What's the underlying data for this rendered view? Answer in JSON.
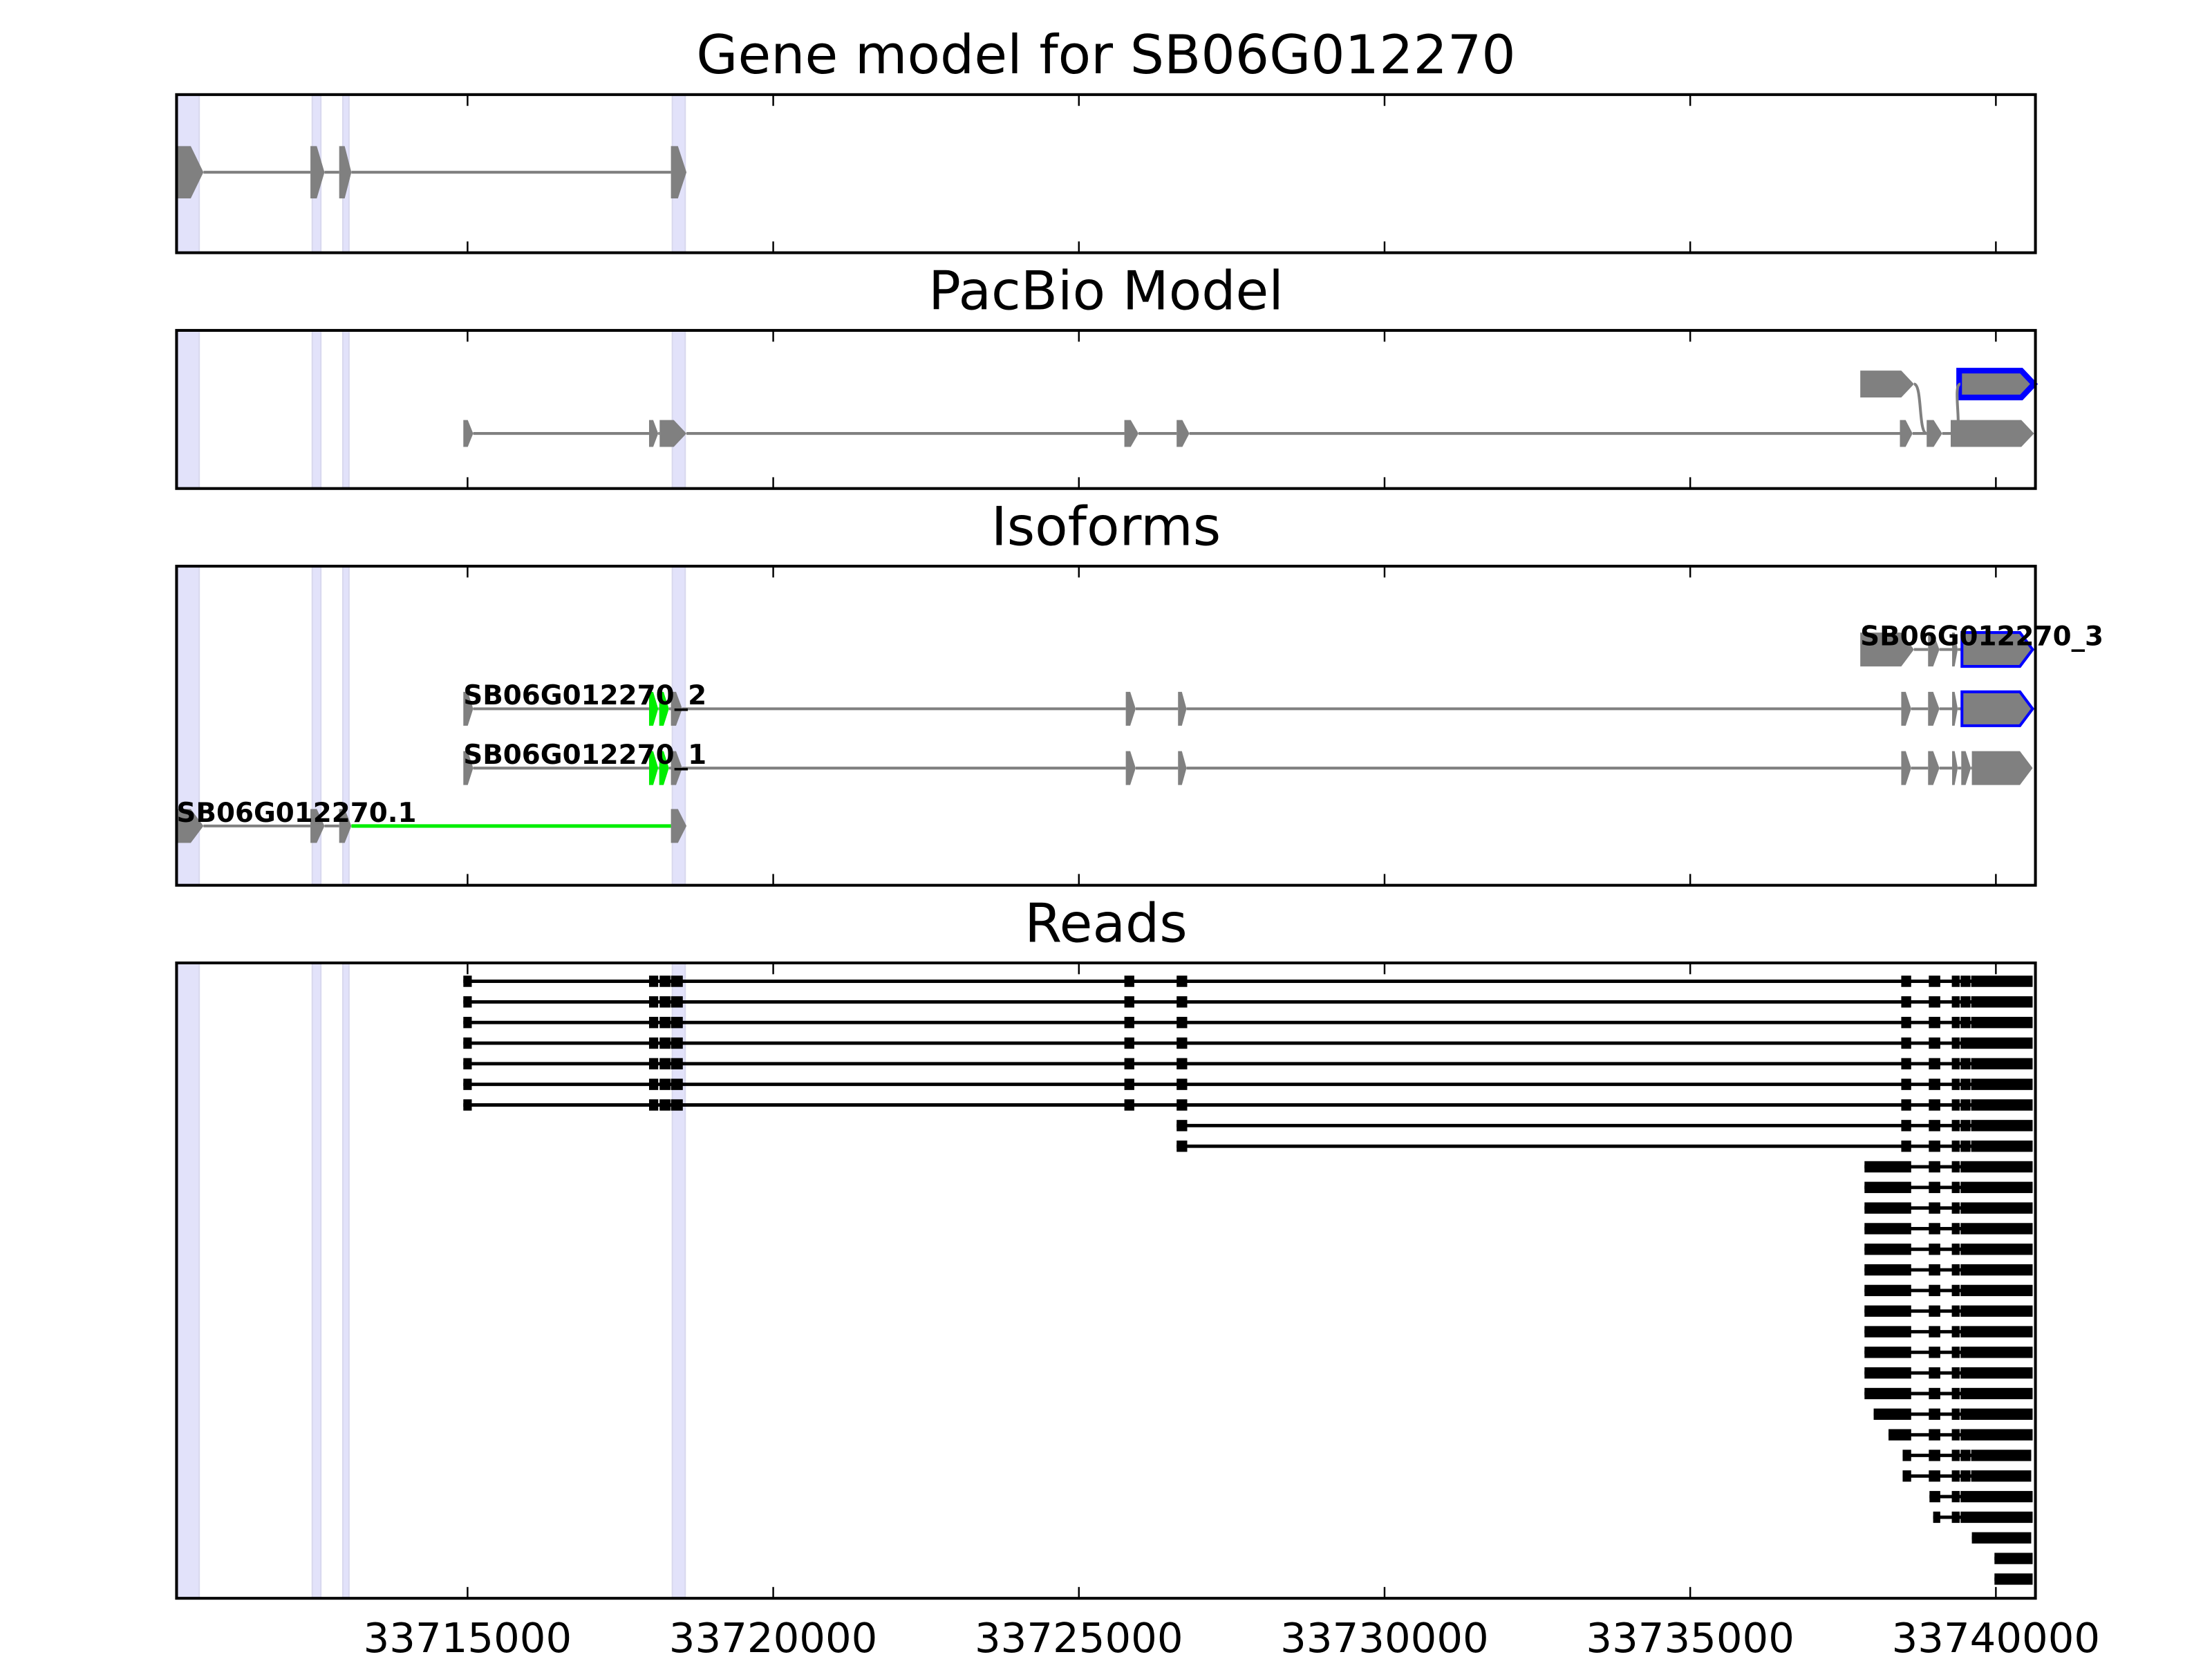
{
  "chart_data": {
    "type": "gene-track",
    "x_axis": {
      "range": [
        33710240,
        33740647
      ],
      "ticks": [
        33715000,
        33720000,
        33725000,
        33730000,
        33735000,
        33740000
      ],
      "tick_labels": [
        "33715000",
        "33720000",
        "33725000",
        "33730000",
        "33735000",
        "33740000"
      ]
    },
    "colors": {
      "exon": "#808080",
      "intron": "#808080",
      "highlight": "#00ee00",
      "outline": "#0000ff",
      "read": "#000000",
      "shade": "#e2e2fa"
    },
    "shaded_regions": [
      [
        33710240,
        33710610
      ],
      [
        33712460,
        33712600
      ],
      [
        33712960,
        33713060
      ],
      [
        33718350,
        33718560
      ]
    ],
    "panels": [
      {
        "title": "Gene model for SB06G012270",
        "transcripts": [
          {
            "exons": [
              [
                33710240,
                33710680
              ],
              [
                33712430,
                33712660
              ],
              [
                33712900,
                33713100
              ],
              [
                33718327,
                33718581
              ]
            ]
          }
        ]
      },
      {
        "title": "PacBio Model",
        "transcripts": [
          {
            "exons": [
              [
                33737782,
                33738660
              ],
              [
                33739399,
                33740624,
                "outline"
              ]
            ],
            "no_intron": true
          },
          {
            "exons": [
              [
                33714931,
                33715092
              ],
              [
                33717969,
                33718119
              ],
              [
                33718142,
                33718581
              ],
              [
                33725744,
                33725975
              ],
              [
                33726599,
                33726807
              ],
              [
                33738430,
                33738637
              ],
              [
                33738868,
                33739122
              ],
              [
                33739261,
                33740624
              ]
            ]
          }
        ],
        "connectors": [
          {
            "from": [
              33738660,
              0
            ],
            "to": [
              33738868,
              1
            ]
          },
          {
            "from": [
              33739330,
              1
            ],
            "to": [
              33739420,
              0
            ]
          }
        ]
      },
      {
        "title": "Isoforms",
        "transcripts": [
          {
            "label": "SB06G012270_3",
            "exons": [
              [
                33737782,
                33738660
              ],
              [
                33738891,
                33739076
              ],
              [
                33739284,
                33739376
              ],
              [
                33739445,
                33740601,
                "outline"
              ]
            ]
          },
          {
            "label": "SB06G012270_2",
            "exons": [
              [
                33714931,
                33715092
              ],
              [
                33717969,
                33718119,
                "highlight"
              ],
              [
                33718135,
                33718294,
                "highlight"
              ],
              [
                33718327,
                33718512
              ],
              [
                33725767,
                33725929
              ],
              [
                33726622,
                33726761
              ],
              [
                33738452,
                33738614
              ],
              [
                33738891,
                33739076
              ],
              [
                33739284,
                33739376
              ],
              [
                33739445,
                33740601,
                "outline"
              ]
            ]
          },
          {
            "label": "SB06G012270_1",
            "exons": [
              [
                33714931,
                33715092
              ],
              [
                33717969,
                33718119,
                "highlight"
              ],
              [
                33718135,
                33718294,
                "highlight"
              ],
              [
                33718327,
                33718512
              ],
              [
                33725767,
                33725929
              ],
              [
                33726622,
                33726761
              ],
              [
                33738452,
                33738614
              ],
              [
                33738891,
                33739076
              ],
              [
                33739284,
                33739376
              ],
              [
                33739434,
                33739591
              ],
              [
                33739607,
                33740601
              ]
            ]
          },
          {
            "label": "SB06G012270.1",
            "exons": [
              [
                33710240,
                33710680
              ],
              [
                33712430,
                33712660
              ],
              [
                33712900,
                33713100
              ],
              [
                33718327,
                33718581
              ]
            ],
            "intron_colors": [
              "intron",
              "intron",
              "highlight"
            ]
          }
        ]
      },
      {
        "title": "Reads",
        "reads": [
          [
            [
              33714931,
              33715069
            ],
            [
              33717969,
              33718119
            ],
            [
              33718142,
              33718318
            ],
            [
              33718327,
              33718521
            ],
            [
              33725744,
              33725906
            ],
            [
              33726599,
              33726772
            ],
            [
              33738452,
              33738614
            ],
            [
              33738903,
              33739090
            ],
            [
              33739279,
              33739408
            ],
            [
              33739422,
              33739584
            ],
            [
              33739596,
              33740601
            ]
          ],
          [
            [
              33714931,
              33715069
            ],
            [
              33717969,
              33718119
            ],
            [
              33718142,
              33718318
            ],
            [
              33718327,
              33718521
            ],
            [
              33725744,
              33725906
            ],
            [
              33726599,
              33726772
            ],
            [
              33738452,
              33738614
            ],
            [
              33738903,
              33739090
            ],
            [
              33739279,
              33739408
            ],
            [
              33739422,
              33739584
            ],
            [
              33739596,
              33740601
            ]
          ],
          [
            [
              33714931,
              33715069
            ],
            [
              33717969,
              33718119
            ],
            [
              33718142,
              33718318
            ],
            [
              33718327,
              33718521
            ],
            [
              33725744,
              33725906
            ],
            [
              33726599,
              33726772
            ],
            [
              33738452,
              33738614
            ],
            [
              33738903,
              33739090
            ],
            [
              33739279,
              33739408
            ],
            [
              33739422,
              33739584
            ],
            [
              33739596,
              33740601
            ]
          ],
          [
            [
              33714931,
              33715069
            ],
            [
              33717969,
              33718119
            ],
            [
              33718142,
              33718318
            ],
            [
              33718327,
              33718521
            ],
            [
              33725744,
              33725906
            ],
            [
              33726599,
              33726772
            ],
            [
              33738452,
              33738614
            ],
            [
              33738903,
              33739090
            ],
            [
              33739279,
              33739408
            ],
            [
              33739422,
              33740601
            ]
          ],
          [
            [
              33714931,
              33715069
            ],
            [
              33717969,
              33718119
            ],
            [
              33718142,
              33718318
            ],
            [
              33718327,
              33718521
            ],
            [
              33725744,
              33725906
            ],
            [
              33726599,
              33726772
            ],
            [
              33738452,
              33738614
            ],
            [
              33738903,
              33739090
            ],
            [
              33739279,
              33739408
            ],
            [
              33739422,
              33739584
            ],
            [
              33739596,
              33740601
            ]
          ],
          [
            [
              33714931,
              33715069
            ],
            [
              33717969,
              33718119
            ],
            [
              33718142,
              33718318
            ],
            [
              33718327,
              33718521
            ],
            [
              33725744,
              33725906
            ],
            [
              33726599,
              33726772
            ],
            [
              33738452,
              33738614
            ],
            [
              33738903,
              33739090
            ],
            [
              33739279,
              33739408
            ],
            [
              33739422,
              33739584
            ],
            [
              33739596,
              33740601
            ]
          ],
          [
            [
              33714931,
              33715069
            ],
            [
              33717969,
              33718119
            ],
            [
              33718142,
              33718318
            ],
            [
              33718327,
              33718521
            ],
            [
              33725744,
              33725906
            ],
            [
              33726599,
              33726772
            ],
            [
              33738452,
              33738614
            ],
            [
              33738903,
              33739090
            ],
            [
              33739279,
              33739408
            ],
            [
              33739422,
              33739584
            ],
            [
              33739596,
              33740601
            ]
          ],
          [
            [
              33726599,
              33726772
            ],
            [
              33738452,
              33738614
            ],
            [
              33738903,
              33739090
            ],
            [
              33739279,
              33739408
            ],
            [
              33739422,
              33739584
            ],
            [
              33739596,
              33740601
            ]
          ],
          [
            [
              33726599,
              33726772
            ],
            [
              33738452,
              33738614
            ],
            [
              33738903,
              33739090
            ],
            [
              33739279,
              33739408
            ],
            [
              33739422,
              33739584
            ],
            [
              33739596,
              33740601
            ]
          ],
          [
            [
              33737851,
              33738614
            ],
            [
              33738903,
              33739090
            ],
            [
              33739279,
              33739408
            ],
            [
              33739422,
              33740601
            ]
          ],
          [
            [
              33737851,
              33738614
            ],
            [
              33738903,
              33739090
            ],
            [
              33739279,
              33739408
            ],
            [
              33739422,
              33740601
            ]
          ],
          [
            [
              33737851,
              33738614
            ],
            [
              33738903,
              33739090
            ],
            [
              33739279,
              33739408
            ],
            [
              33739422,
              33740601
            ]
          ],
          [
            [
              33737851,
              33738614
            ],
            [
              33738903,
              33739090
            ],
            [
              33739279,
              33739408
            ],
            [
              33739422,
              33740601
            ]
          ],
          [
            [
              33737851,
              33738614
            ],
            [
              33738903,
              33739090
            ],
            [
              33739279,
              33739408
            ],
            [
              33739422,
              33740601
            ]
          ],
          [
            [
              33737851,
              33738614
            ],
            [
              33738903,
              33739090
            ],
            [
              33739279,
              33739408
            ],
            [
              33739422,
              33740601
            ]
          ],
          [
            [
              33737851,
              33738614
            ],
            [
              33738903,
              33739090
            ],
            [
              33739279,
              33739408
            ],
            [
              33739422,
              33740601
            ]
          ],
          [
            [
              33737851,
              33738614
            ],
            [
              33738903,
              33739090
            ],
            [
              33739279,
              33739408
            ],
            [
              33739422,
              33740601
            ]
          ],
          [
            [
              33737851,
              33738614
            ],
            [
              33738903,
              33739090
            ],
            [
              33739279,
              33739408
            ],
            [
              33739422,
              33740601
            ]
          ],
          [
            [
              33737851,
              33738614
            ],
            [
              33738903,
              33739090
            ],
            [
              33739279,
              33739408
            ],
            [
              33739422,
              33740601
            ]
          ],
          [
            [
              33737851,
              33738614
            ],
            [
              33738903,
              33739090
            ],
            [
              33739279,
              33739408
            ],
            [
              33739422,
              33740601
            ]
          ],
          [
            [
              33737851,
              33738614
            ],
            [
              33738903,
              33739090
            ],
            [
              33739279,
              33739408
            ],
            [
              33739422,
              33740601
            ]
          ],
          [
            [
              33738001,
              33738614
            ],
            [
              33738903,
              33739090
            ],
            [
              33739279,
              33739408
            ],
            [
              33739422,
              33740601
            ]
          ],
          [
            [
              33738244,
              33738614
            ],
            [
              33738903,
              33739090
            ],
            [
              33739279,
              33739408
            ],
            [
              33739422,
              33740601
            ]
          ],
          [
            [
              33738475,
              33738614
            ],
            [
              33738903,
              33739090
            ],
            [
              33739279,
              33739408
            ],
            [
              33739422,
              33739584
            ],
            [
              33739596,
              33740578
            ]
          ],
          [
            [
              33738475,
              33738614
            ],
            [
              33738903,
              33739090
            ],
            [
              33739279,
              33739408
            ],
            [
              33739422,
              33739584
            ],
            [
              33739596,
              33740578
            ]
          ],
          [
            [
              33738914,
              33739090
            ],
            [
              33739279,
              33739408
            ],
            [
              33739422,
              33740601
            ]
          ],
          [
            [
              33738974,
              33739090
            ],
            [
              33739279,
              33739408
            ],
            [
              33739422,
              33740601
            ]
          ],
          [
            [
              33739607,
              33740578
            ]
          ],
          [
            [
              33739977,
              33740601
            ]
          ],
          [
            [
              33739977,
              33740601
            ]
          ]
        ]
      }
    ]
  }
}
